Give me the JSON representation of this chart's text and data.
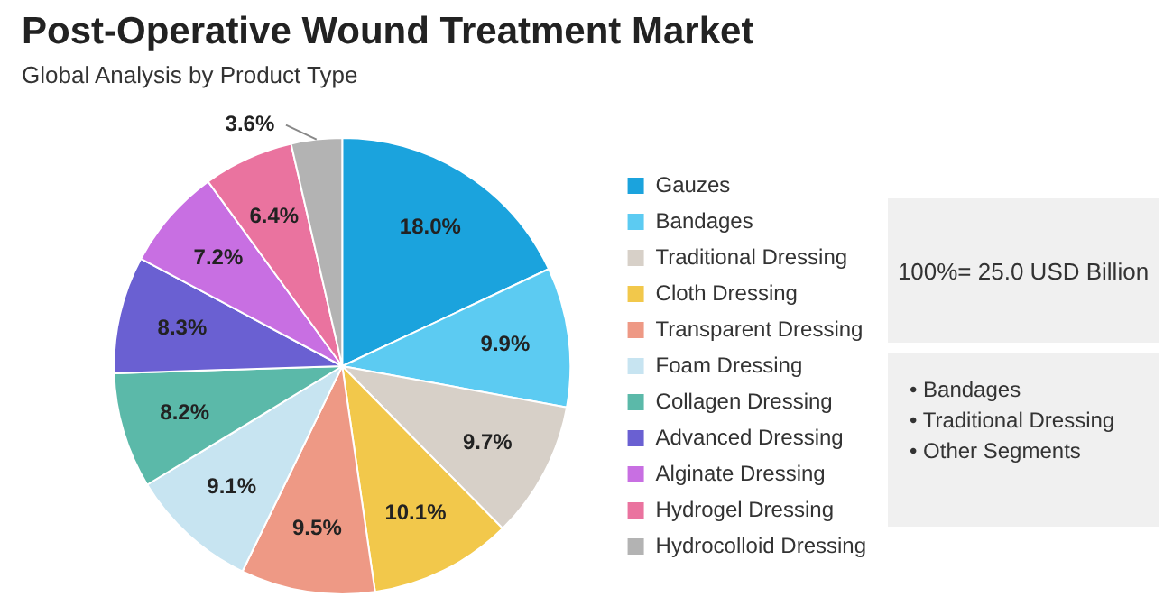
{
  "chart_data": {
    "type": "pie",
    "title": "Post-Operative Wound Treatment Market",
    "subtitle": "Global Analysis by Product Type",
    "categories": [
      "Gauzes",
      "Bandages",
      "Traditional Dressing",
      "Cloth Dressing",
      "Transparent Dressing",
      "Foam Dressing",
      "Collagen Dressing",
      "Advanced Dressing",
      "Alginate Dressing",
      "Hydrogel Dressing",
      "Hydrocolloid Dressing"
    ],
    "values": [
      18.0,
      9.9,
      9.7,
      10.1,
      9.5,
      9.1,
      8.2,
      8.3,
      7.2,
      6.4,
      3.6
    ],
    "value_labels": [
      "18.0%",
      "9.9%",
      "9.7%",
      "10.1%",
      "9.5%",
      "9.1%",
      "8.2%",
      "8.3%",
      "7.2%",
      "6.4%",
      "3.6%"
    ],
    "colors": [
      "#1ba3dd",
      "#5ccbf2",
      "#d7d0c8",
      "#f2c84b",
      "#ee9985",
      "#c7e4f1",
      "#5bb9a9",
      "#6a60d2",
      "#c86fe2",
      "#ea739f",
      "#b3b3b3"
    ],
    "legend": "right",
    "annotations": [
      "100%= 25.0 USD Billion",
      "• Bandages",
      "• Traditional Dressing",
      "• Other Segments"
    ]
  }
}
